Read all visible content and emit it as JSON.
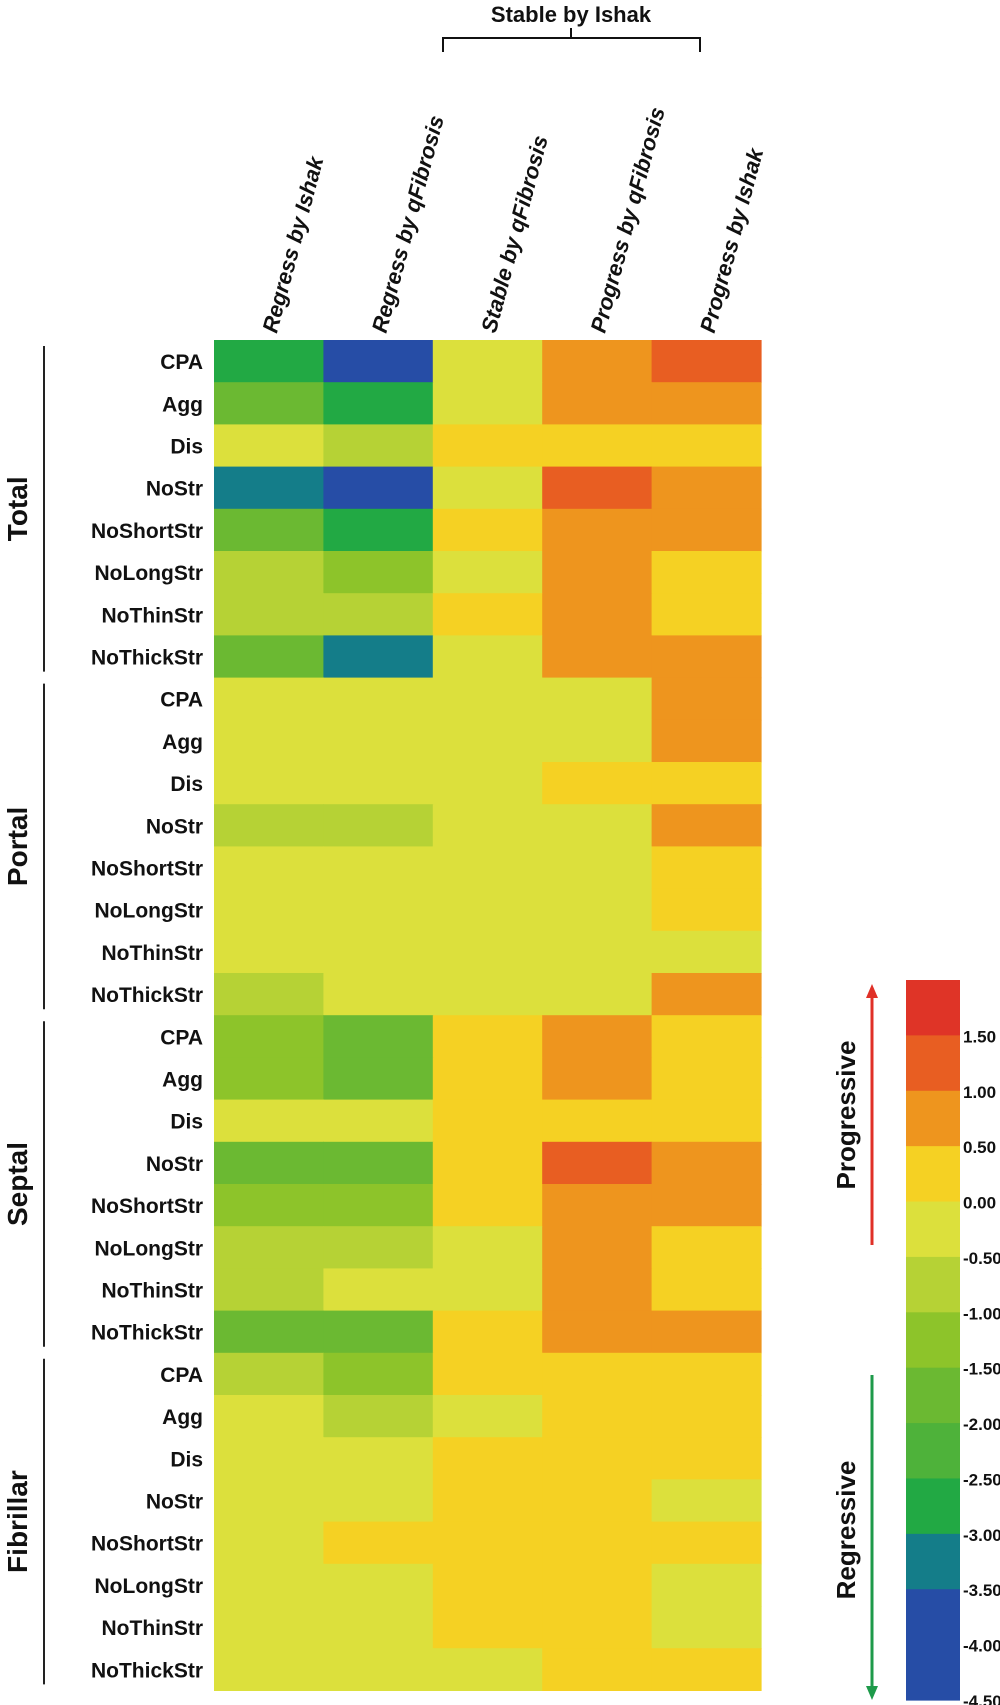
{
  "chart_data": {
    "type": "heatmap",
    "title": "",
    "columns": [
      "Regress by Ishak",
      "Regress by qFibrosis",
      "Stable by qFibrosis",
      "Progress by qFibrosis",
      "Progress by Ishak"
    ],
    "bracket_label": "Stable by Ishak",
    "bracket_spans": [
      "Regress by qFibrosis",
      "Stable by qFibrosis",
      "Progress by qFibrosis"
    ],
    "row_labels": [
      "CPA",
      "Agg",
      "Dis",
      "NoStr",
      "NoShortStr",
      "NoLongStr",
      "NoThinStr",
      "NoThickStr"
    ],
    "groups": [
      {
        "name": "Total",
        "values": [
          [
            -2.75,
            -4.25,
            -0.25,
            0.75,
            1.25
          ],
          [
            -1.75,
            -2.75,
            -0.25,
            0.75,
            0.75
          ],
          [
            -0.25,
            -0.75,
            0.25,
            0.25,
            0.25
          ],
          [
            -3.25,
            -4.25,
            -0.25,
            1.25,
            0.75
          ],
          [
            -1.75,
            -2.75,
            0.25,
            0.5,
            0.75
          ],
          [
            -0.75,
            -1.25,
            -0.25,
            0.5,
            0.25
          ],
          [
            -0.75,
            -0.75,
            0.25,
            0.5,
            0.25
          ],
          [
            -1.75,
            -3.25,
            -0.25,
            0.75,
            0.75
          ]
        ]
      },
      {
        "name": "Portal",
        "values": [
          [
            -0.25,
            -0.25,
            -0.25,
            -0.25,
            0.5
          ],
          [
            -0.25,
            -0.25,
            -0.25,
            -0.25,
            0.5
          ],
          [
            -0.25,
            -0.25,
            -0.25,
            0.25,
            0.25
          ],
          [
            -0.75,
            -0.75,
            -0.25,
            -0.25,
            0.5
          ],
          [
            -0.25,
            -0.25,
            -0.25,
            -0.25,
            0.25
          ],
          [
            -0.25,
            -0.25,
            -0.25,
            -0.25,
            0.25
          ],
          [
            -0.25,
            -0.25,
            -0.25,
            -0.25,
            -0.25
          ],
          [
            -0.75,
            -0.25,
            -0.25,
            -0.25,
            0.5
          ]
        ]
      },
      {
        "name": "Septal",
        "values": [
          [
            -1.25,
            -1.75,
            0.25,
            0.75,
            0.25
          ],
          [
            -1.25,
            -1.75,
            0.25,
            0.5,
            0.25
          ],
          [
            -0.25,
            -0.25,
            0.25,
            0.25,
            0.25
          ],
          [
            -1.75,
            -1.75,
            0.25,
            1.25,
            0.5
          ],
          [
            -1.25,
            -1.25,
            0.25,
            0.5,
            0.5
          ],
          [
            -0.75,
            -0.75,
            -0.25,
            0.75,
            0.25
          ],
          [
            -0.75,
            -0.25,
            -0.25,
            0.5,
            0.25
          ],
          [
            -1.75,
            -1.75,
            0.25,
            0.75,
            0.5
          ]
        ]
      },
      {
        "name": "Fibrillar",
        "values": [
          [
            -0.75,
            -1.25,
            0.25,
            0.25,
            0.25
          ],
          [
            -0.25,
            -0.75,
            -0.25,
            0.25,
            0.25
          ],
          [
            -0.25,
            -0.25,
            0.25,
            0.25,
            0.25
          ],
          [
            -0.25,
            -0.25,
            0.25,
            0.25,
            -0.25
          ],
          [
            -0.25,
            0.25,
            0.25,
            0.25,
            0.25
          ],
          [
            -0.25,
            -0.25,
            0.25,
            0.25,
            -0.25
          ],
          [
            -0.25,
            -0.25,
            0.25,
            0.25,
            -0.25
          ],
          [
            -0.25,
            -0.25,
            -0.25,
            0.25,
            0.25
          ]
        ]
      }
    ],
    "colorbar": {
      "bins": [
        {
          "lo": 1.5,
          "hi": 2.0,
          "color": "#DF3427"
        },
        {
          "lo": 1.0,
          "hi": 1.5,
          "color": "#E85E22"
        },
        {
          "lo": 0.5,
          "hi": 1.0,
          "color": "#EE951E"
        },
        {
          "lo": 0.0,
          "hi": 0.5,
          "color": "#F5D123"
        },
        {
          "lo": -0.5,
          "hi": 0.0,
          "color": "#DCE03C"
        },
        {
          "lo": -1.0,
          "hi": -0.5,
          "color": "#B6D235"
        },
        {
          "lo": -1.5,
          "hi": -1.0,
          "color": "#8DC42A"
        },
        {
          "lo": -2.0,
          "hi": -1.5,
          "color": "#6BB932"
        },
        {
          "lo": -2.5,
          "hi": -2.0,
          "color": "#4EB23A"
        },
        {
          "lo": -3.0,
          "hi": -2.5,
          "color": "#22A944"
        },
        {
          "lo": -3.5,
          "hi": -3.0,
          "color": "#147D89"
        },
        {
          "lo": -4.5,
          "hi": -3.5,
          "color": "#264DA6"
        }
      ],
      "tick_labels": [
        "1.50",
        "1.00",
        "0.50",
        "0.00",
        "-0.50",
        "-1.00",
        "-1.50",
        "-2.00",
        "-2.50",
        "-3.00",
        "-3.50",
        "-4.00",
        "-4.50"
      ],
      "tick_values": [
        1.5,
        1.0,
        0.5,
        0.0,
        -0.5,
        -1.0,
        -1.5,
        -2.0,
        -2.5,
        -3.0,
        -3.5,
        -4.0,
        -4.5
      ],
      "range": [
        -4.5,
        2.0
      ]
    },
    "arrows": [
      {
        "label": "Progressive",
        "direction": "up",
        "color": "#E03027"
      },
      {
        "label": "Regressive",
        "direction": "down",
        "color": "#1E9A4A"
      }
    ]
  }
}
